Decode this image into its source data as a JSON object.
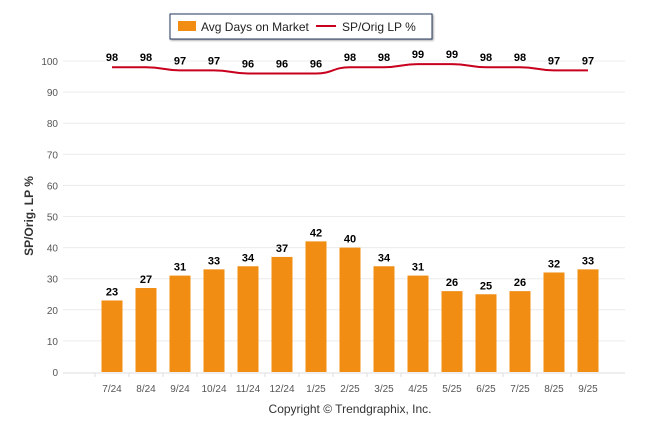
{
  "chart_data": {
    "type": "bar",
    "categories": [
      "7/24",
      "8/24",
      "9/24",
      "10/24",
      "11/24",
      "12/24",
      "1/25",
      "2/25",
      "3/25",
      "4/25",
      "5/25",
      "6/25",
      "7/25",
      "8/25",
      "9/25"
    ],
    "series": [
      {
        "name": "Avg Days on Market",
        "type": "bar",
        "color": "#F18D13",
        "values": [
          23,
          27,
          31,
          33,
          34,
          37,
          42,
          40,
          34,
          31,
          26,
          25,
          26,
          32,
          33
        ]
      },
      {
        "name": "SP/Orig LP %",
        "type": "line",
        "color": "#C8001E",
        "values": [
          98,
          98,
          97,
          97,
          96,
          96,
          96,
          98,
          98,
          99,
          99,
          98,
          98,
          97,
          97
        ]
      }
    ],
    "ylabel": "SP/Orig. LP %",
    "xlabel": "",
    "ylim": [
      0,
      100
    ],
    "yticks": [
      0,
      10,
      20,
      30,
      40,
      50,
      60,
      70,
      80,
      90,
      100
    ],
    "grid": true,
    "legend_position": "top-center",
    "footer": "Copyright © Trendgraphix, Inc."
  }
}
